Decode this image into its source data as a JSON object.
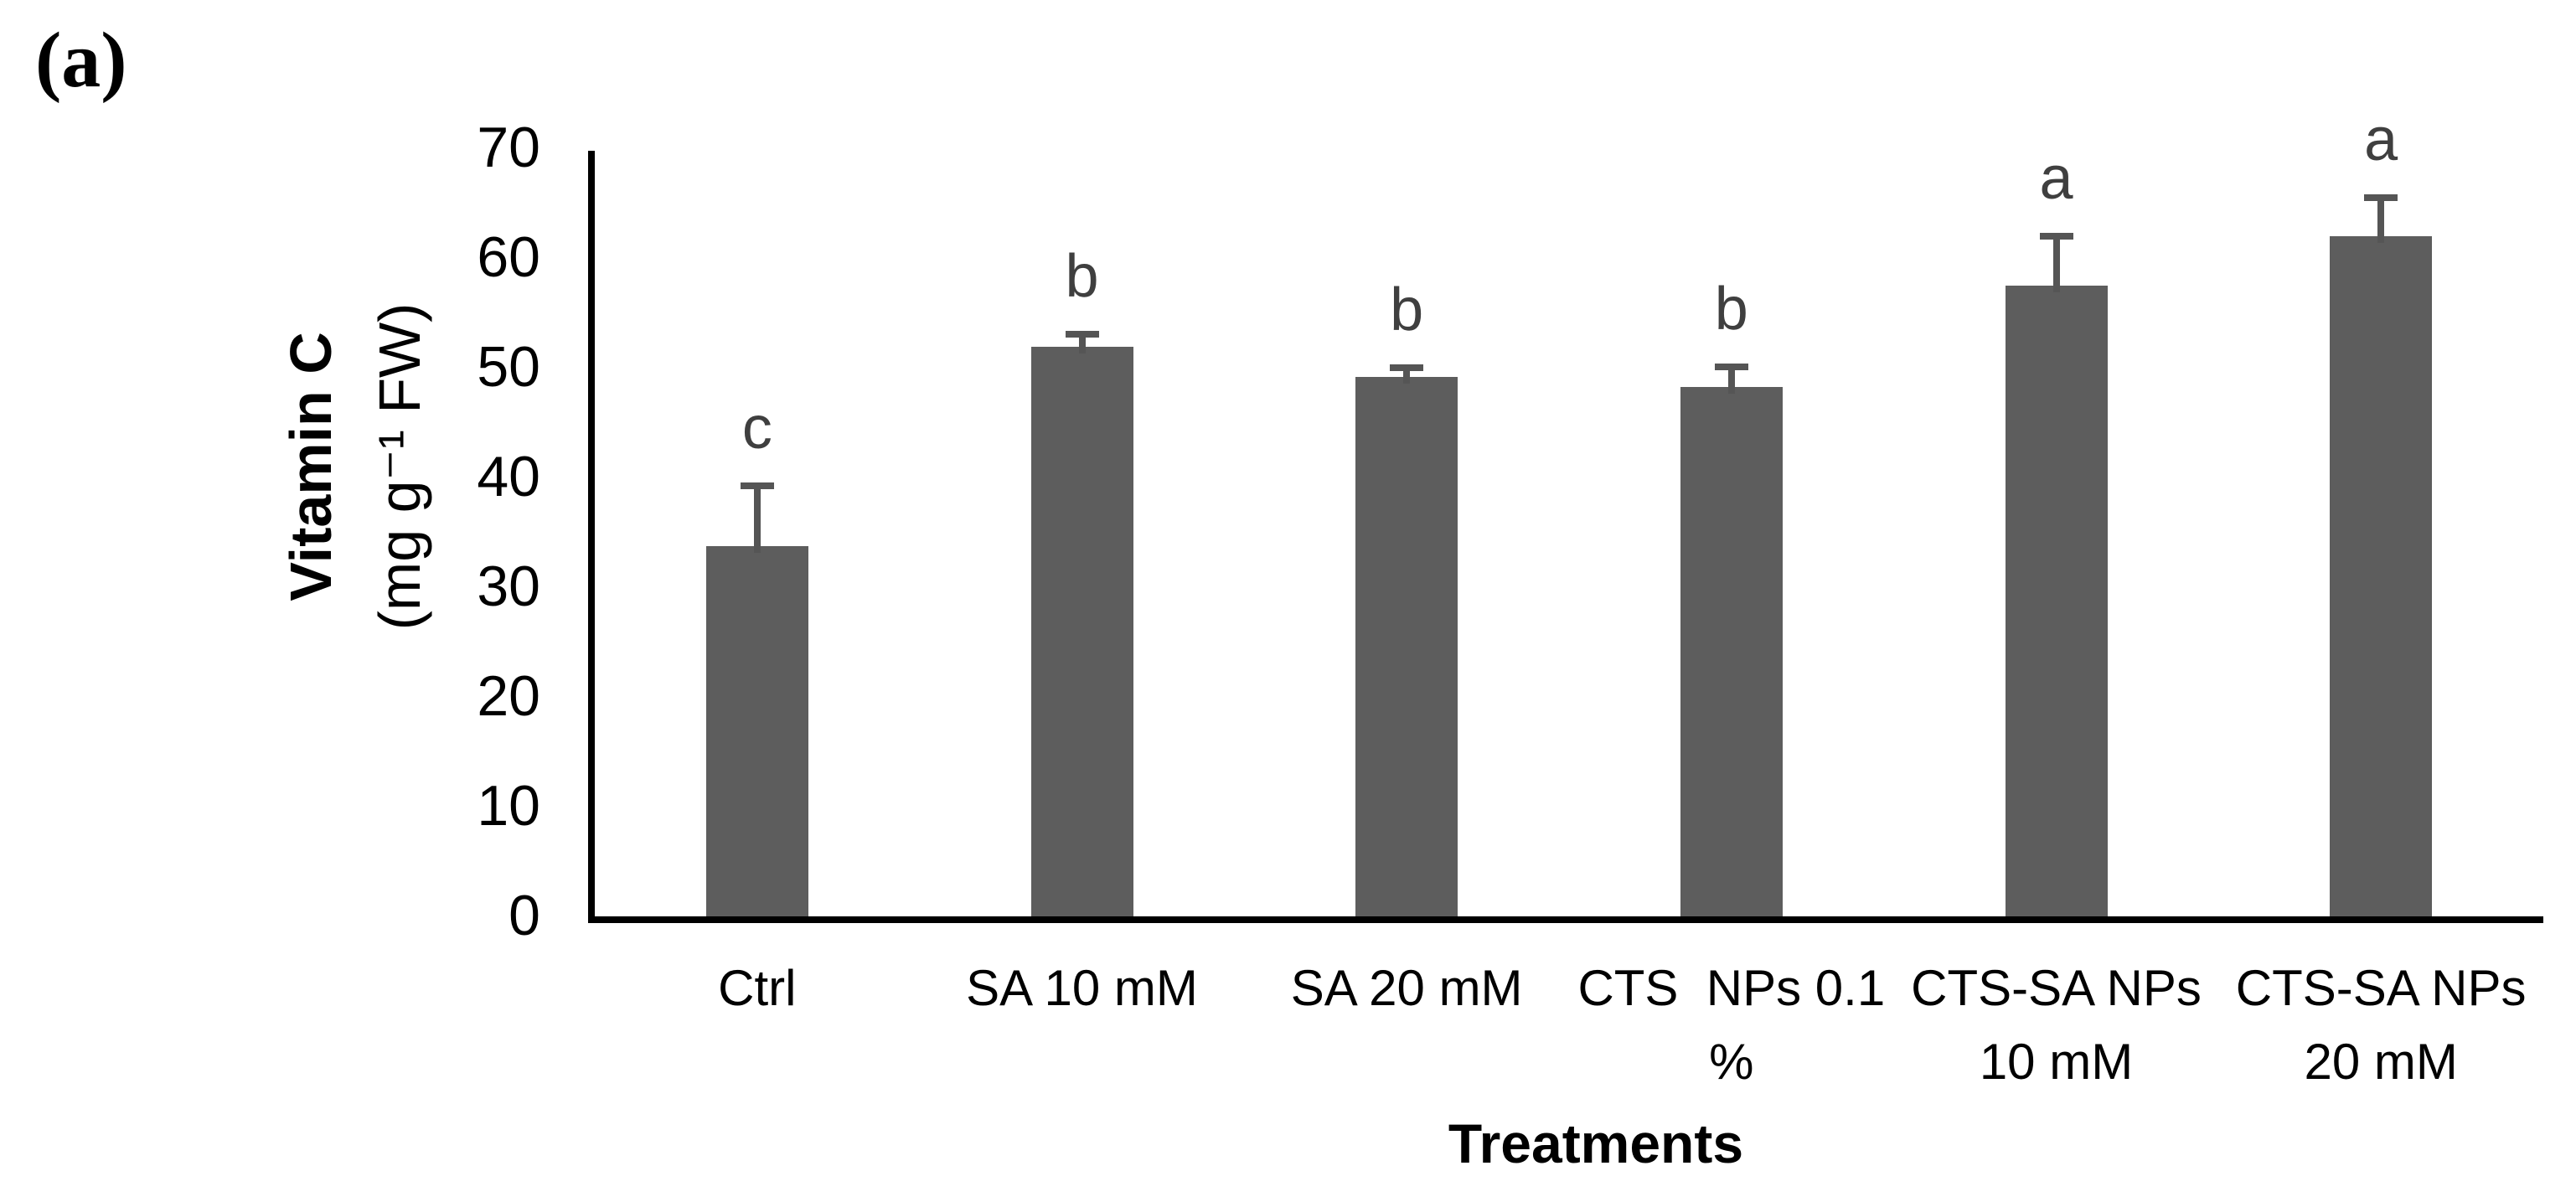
{
  "panel_label": "(a)",
  "chart_data": {
    "type": "bar",
    "title": "",
    "ylabel_line1": "Vitamin C",
    "ylabel_line2": "(mg g⁻¹ FW)",
    "xlabel": "Treatments",
    "ylim": [
      0,
      70
    ],
    "ytick_step": 10,
    "yticks": [
      0,
      10,
      20,
      30,
      40,
      50,
      60,
      70
    ],
    "grid": false,
    "legend": "none",
    "bar_color": "#5D5D5D",
    "error_color": "#555555",
    "letter_color": "#3F3F3F",
    "categories": [
      "Ctrl",
      "SA 10 mM",
      "SA 20 mM",
      "CTS NPs 0.1 %",
      "CTS-SA NPs 10 mM",
      "CTS-SA NPs 20 mM"
    ],
    "category_lines": [
      [
        "Ctrl"
      ],
      [
        "SA 10 mM"
      ],
      [
        "SA 20 mM"
      ],
      [
        "CTS  NPs 0.1",
        "%"
      ],
      [
        "CTS-SA NPs",
        "10 mM"
      ],
      [
        "CTS-SA NPs",
        "20 mM"
      ]
    ],
    "values": [
      34.0,
      52.1,
      49.4,
      48.5,
      57.7,
      62.2
    ],
    "errors_plus": [
      5.8,
      1.5,
      1.1,
      2.1,
      4.8,
      3.8
    ],
    "sig_letters": [
      "c",
      "b",
      "b",
      "b",
      "a",
      "a"
    ]
  }
}
